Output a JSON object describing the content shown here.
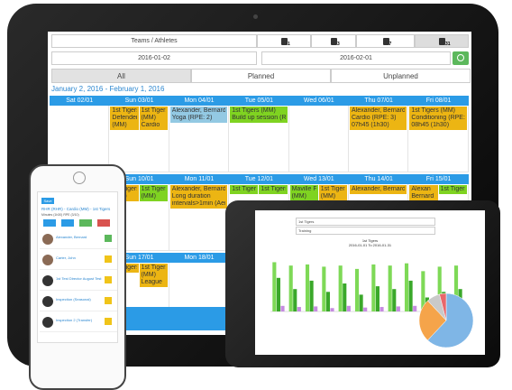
{
  "toolbar": {
    "teams_label": "Teams / Athletes",
    "view_buttons": [
      "1",
      "3",
      "7",
      "31"
    ],
    "start_date": "2016-01-02",
    "end_date": "2016-02-01"
  },
  "tabs": [
    "All",
    "Planned",
    "Unplanned"
  ],
  "range_title": "January 2, 2016 - February 1, 2016",
  "weeks": [
    {
      "days": [
        {
          "label": "Sat 02/01",
          "events": []
        },
        {
          "label": "Sun 03/01",
          "events": [
            {
              "lines": [
                "1st Tigers -",
                "Defender",
                "(MM)"
              ],
              "color": "#ecb513"
            },
            {
              "lines": [
                "1st Tigers",
                "(MM)",
                "Cardio"
              ],
              "color": "#ecb513"
            }
          ]
        },
        {
          "label": "Mon 04/01",
          "events": [
            {
              "lines": [
                "Alexander, Bernard",
                "Yoga (RPE: 2)"
              ],
              "color": "#93c9e3"
            }
          ]
        },
        {
          "label": "Tue 05/01",
          "events": [
            {
              "lines": [
                "1st Tigers (MM)",
                "Build up session (RPE:"
              ],
              "color": "#7fd321"
            }
          ]
        },
        {
          "label": "Wed 06/01",
          "events": []
        },
        {
          "label": "Thu 07/01",
          "events": [
            {
              "lines": [
                "Alexander, Bernard",
                "Cardio (RPE: 3)",
                "07h45 (1h30)"
              ],
              "color": "#ecb513"
            }
          ]
        },
        {
          "label": "Fri 08/01",
          "events": [
            {
              "lines": [
                "1st Tigers (MM)",
                "Conditioning (RPE: 7)",
                "08h45 (1h30)"
              ],
              "color": "#ecb513"
            }
          ]
        }
      ]
    },
    {
      "days": [
        {
          "label": "Sun 10/01",
          "events": [
            {
              "lines": [
                "1st Tigers",
                "(MM)"
              ],
              "color": "#ecb513"
            },
            {
              "lines": [
                "1st Tigers",
                "(MM)"
              ],
              "color": "#7fd321"
            }
          ]
        },
        {
          "label": "Mon 11/01",
          "events": [
            {
              "lines": [
                "Alexander, Bernard",
                "Long duration",
                "intervals>1min (Aerobic"
              ],
              "color": "#ecb513"
            }
          ]
        },
        {
          "label": "Tue 12/01",
          "events": [
            {
              "lines": [
                "1st Tigers (MM)"
              ],
              "color": "#7fd321"
            },
            {
              "lines": [
                "1st Tigers (MM)"
              ],
              "color": "#7fd321"
            }
          ]
        },
        {
          "label": "Wed 13/01",
          "events": [
            {
              "lines": [
                "Maville FC",
                "(MM)"
              ],
              "color": "#7fd321"
            },
            {
              "lines": [
                "1st Tigers",
                "(MM)"
              ],
              "color": "#ecb513"
            }
          ]
        },
        {
          "label": "Thu 14/01",
          "events": [
            {
              "lines": [
                "Alexander, Bernard"
              ],
              "color": "#ecb513"
            }
          ]
        },
        {
          "label": "Fri 15/01",
          "events": [
            {
              "lines": [
                "Alexan",
                "Bernard"
              ],
              "color": "#ecb513"
            },
            {
              "lines": [
                "1st Tigers"
              ],
              "color": "#7fd321"
            }
          ]
        }
      ]
    },
    {
      "days": [
        {
          "label": "Sun 17/01",
          "events": [
            {
              "lines": [
                "1st Tigers"
              ],
              "color": "#ecb513"
            },
            {
              "lines": [
                "1st Tigers",
                "(MM)",
                "League"
              ],
              "color": "#ecb513"
            }
          ]
        },
        {
          "label": "Mon 18/01",
          "events": []
        }
      ]
    }
  ],
  "phone": {
    "save": "Save",
    "title": "RHR (RHR) - Cardio (MM) - 1st Tigers",
    "subtitle": "Minutes (1h30) RPE (3/10)",
    "athletes": [
      "Alexander, Bernard",
      "Carter, John",
      "1st Test Director August Test",
      "Inspection (Seasonal)",
      "Inspection 2 (Transfer)"
    ]
  },
  "report": {
    "selects": [
      "1st Tigers",
      "Training"
    ],
    "chart_title": "1st Tigers",
    "chart_subtitle": "2016-01-01 To 2016-01-31",
    "chart": {
      "ylim": [
        0,
        100
      ],
      "series": [
        {
          "color": "#7ed957",
          "values": [
            88,
            82,
            84,
            80,
            82,
            76,
            84,
            82,
            86,
            72,
            80,
            82
          ]
        },
        {
          "color": "#3aa82a",
          "values": [
            60,
            40,
            55,
            35,
            50,
            30,
            45,
            40,
            55,
            25,
            35,
            40
          ]
        },
        {
          "color": "#c58be0",
          "values": [
            10,
            8,
            9,
            6,
            10,
            7,
            8,
            9,
            10,
            6,
            8,
            9
          ]
        }
      ]
    },
    "pie": {
      "values": [
        62,
        26,
        8,
        4
      ],
      "colors": [
        "#7fb6e6",
        "#f5a44a",
        "#c9c9c9",
        "#e8676b"
      ]
    }
  }
}
